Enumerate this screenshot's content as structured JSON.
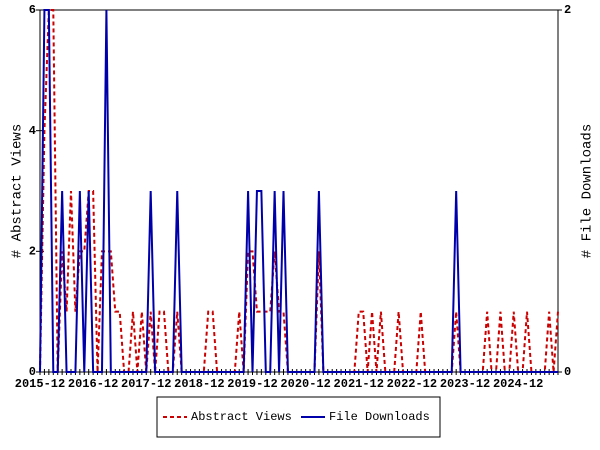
{
  "chart_data": {
    "type": "line",
    "y_label": "# Abstract Views",
    "y2_label": "# File Downloads",
    "categories": [
      "2015-12",
      null,
      null,
      null,
      null,
      null,
      null,
      null,
      null,
      null,
      null,
      null,
      "2016-12",
      null,
      null,
      null,
      null,
      null,
      null,
      null,
      null,
      null,
      null,
      null,
      "2017-12",
      null,
      null,
      null,
      null,
      null,
      null,
      null,
      null,
      null,
      null,
      null,
      "2018-12",
      null,
      null,
      null,
      null,
      null,
      null,
      null,
      null,
      null,
      null,
      null,
      "2019-12",
      null,
      null,
      null,
      null,
      null,
      null,
      null,
      null,
      null,
      null,
      null,
      "2020-12",
      null,
      null,
      null,
      null,
      null,
      null,
      null,
      null,
      null,
      null,
      null,
      "2021-12",
      null,
      null,
      null,
      null,
      null,
      null,
      null,
      null,
      null,
      null,
      null,
      "2022-12",
      null,
      null,
      null,
      null,
      null,
      null,
      null,
      null,
      null,
      null,
      null,
      "2023-12",
      null,
      null,
      null,
      null,
      null,
      null,
      null,
      null,
      null,
      null,
      null,
      "2024-12",
      null,
      null,
      null,
      null,
      null,
      null,
      null,
      null,
      null
    ],
    "series": [
      {
        "name": "Abstract Views",
        "color": "#cc0000",
        "dash": true,
        "values": [
          0,
          4,
          6,
          6,
          0,
          2,
          1,
          3,
          1,
          2,
          2,
          3,
          3,
          0,
          2,
          2,
          2,
          1,
          1,
          0,
          0,
          1,
          0,
          1,
          0,
          1,
          0,
          1,
          1,
          0,
          0,
          1,
          0,
          0,
          0,
          0,
          0,
          0,
          1,
          1,
          0,
          0,
          0,
          0,
          0,
          1,
          0,
          2,
          2,
          1,
          1,
          1,
          1,
          2,
          1,
          1,
          0,
          0,
          0,
          0,
          0,
          0,
          0,
          2,
          0,
          0,
          0,
          0,
          0,
          0,
          0,
          0,
          1,
          1,
          0,
          1,
          0,
          1,
          0,
          0,
          0,
          1,
          0,
          0,
          0,
          0,
          1,
          0,
          0,
          0,
          0,
          0,
          0,
          0,
          1,
          0,
          0,
          0,
          0,
          0,
          0,
          1,
          0,
          0,
          1,
          0,
          0,
          1,
          0,
          0,
          1,
          0,
          0,
          0,
          0,
          1,
          0,
          1
        ]
      },
      {
        "name": "File Downloads",
        "color": "#0000aa",
        "dash": false,
        "axis": "y2",
        "values": [
          0,
          2,
          2,
          0,
          0,
          1,
          0,
          0,
          0,
          1,
          0,
          1,
          0,
          0,
          0,
          2,
          0,
          0,
          0,
          0,
          0,
          0,
          0,
          0,
          0,
          1,
          0,
          0,
          0,
          0,
          0,
          1,
          0,
          0,
          0,
          0,
          0,
          0,
          0,
          0,
          0,
          0,
          0,
          0,
          0,
          0,
          0,
          1,
          0,
          1,
          1,
          0,
          0,
          1,
          0,
          1,
          0,
          0,
          0,
          0,
          0,
          0,
          0,
          1,
          0,
          0,
          0,
          0,
          0,
          0,
          0,
          0,
          0,
          0,
          0,
          0,
          0,
          0,
          0,
          0,
          0,
          0,
          0,
          0,
          0,
          0,
          0,
          0,
          0,
          0,
          0,
          0,
          0,
          0,
          1,
          0,
          0,
          0,
          0,
          0,
          0,
          0,
          0,
          0,
          0,
          0,
          0,
          0,
          0,
          0,
          0,
          0,
          0,
          0,
          0,
          0,
          0,
          0
        ]
      }
    ],
    "ylim": [
      0,
      6
    ],
    "yticks": [
      0,
      2,
      4,
      6
    ],
    "y2lim": [
      0,
      2
    ],
    "y2ticks": [
      0,
      2
    ],
    "legend": "bottom"
  }
}
